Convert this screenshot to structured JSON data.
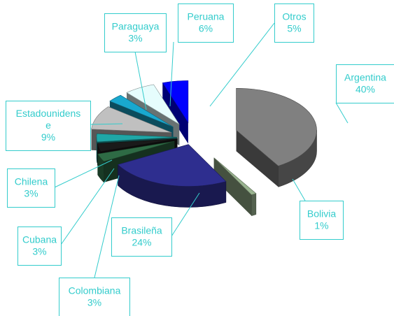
{
  "chart_data": {
    "type": "pie",
    "style": "exploded-3d",
    "categories": [
      "Argentina",
      "Bolivia",
      "Brasileña",
      "Colombiana",
      "Cubana",
      "Chilena",
      "Estadounidense",
      "Paraguaya",
      "Peruana",
      "Otros"
    ],
    "values": [
      40,
      1,
      24,
      3,
      3,
      3,
      9,
      3,
      6,
      5
    ],
    "value_labels": [
      "40%",
      "1%",
      "24%",
      "3%",
      "3%",
      "3%",
      "9%",
      "3%",
      "6%",
      "5%"
    ],
    "label_lines": [
      [
        "Argentina",
        "40%"
      ],
      [
        "Bolivia",
        "1%"
      ],
      [
        "Brasileña",
        "24%"
      ],
      [
        "Colombiana",
        "3%"
      ],
      [
        "Cubana",
        "3%"
      ],
      [
        "Chilena",
        "3%"
      ],
      [
        "Estadounidens",
        "e",
        "9%"
      ],
      [
        "Paraguaya",
        "3%"
      ],
      [
        "Peruana",
        "6%"
      ],
      [
        "Otros",
        "5%"
      ]
    ],
    "colors": [
      "#808080",
      "#99b38f",
      "#2e2e8f",
      "#2e6b45",
      "#1a1a1a",
      "#1fa7a7",
      "#c0c0c0",
      "#19a8cf",
      "#e6fdfd",
      "#0000ff"
    ],
    "label_color": "#33cccc",
    "legend": "none"
  }
}
